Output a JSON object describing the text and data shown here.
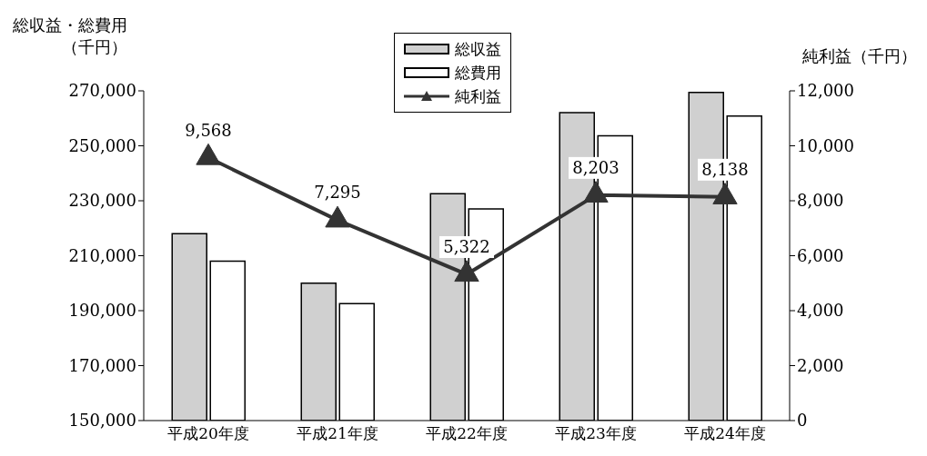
{
  "chart_data": {
    "type": "bar",
    "ylabel": "総収益・総費用（千円）",
    "y2label": "純利益（千円）",
    "categories": [
      "平成20年度",
      "平成21年度",
      "平成22年度",
      "平成23年度",
      "平成24年度"
    ],
    "series": [
      {
        "name": "総収益",
        "color": "#d0d0d0",
        "values": [
          218000,
          200000,
          232600,
          262100,
          269400
        ]
      },
      {
        "name": "総費用",
        "color": "#ffffff",
        "values": [
          208000,
          192600,
          227000,
          253600,
          260800
        ]
      },
      {
        "name": "純利益",
        "type": "line",
        "axis": "y2",
        "color": "#333333",
        "marker": "triangle",
        "values": [
          9568,
          7295,
          5322,
          8203,
          8138
        ],
        "value_labels": [
          "9,568",
          "7,295",
          "5,322",
          "8,203",
          "8,138"
        ]
      }
    ],
    "ylim": [
      150000,
      270000
    ],
    "yticks": [
      {
        "value": 150000,
        "label": "150,000"
      },
      {
        "value": 170000,
        "label": "170,000"
      },
      {
        "value": 190000,
        "label": "190,000"
      },
      {
        "value": 210000,
        "label": "210,000"
      },
      {
        "value": 230000,
        "label": "230,000"
      },
      {
        "value": 250000,
        "label": "250,000"
      },
      {
        "value": 270000,
        "label": "270,000"
      }
    ],
    "y2lim": [
      0,
      12000
    ],
    "y2ticks": [
      0,
      {
        "value": 2000,
        "label": "2,000"
      },
      {
        "value": 4000,
        "label": "4,000"
      },
      {
        "value": 6000,
        "label": "6,000"
      },
      {
        "value": 8000,
        "label": "8,000"
      },
      {
        "value": 10000,
        "label": "10,000"
      },
      {
        "value": 12000,
        "label": "12,000"
      }
    ],
    "legend": "top"
  }
}
